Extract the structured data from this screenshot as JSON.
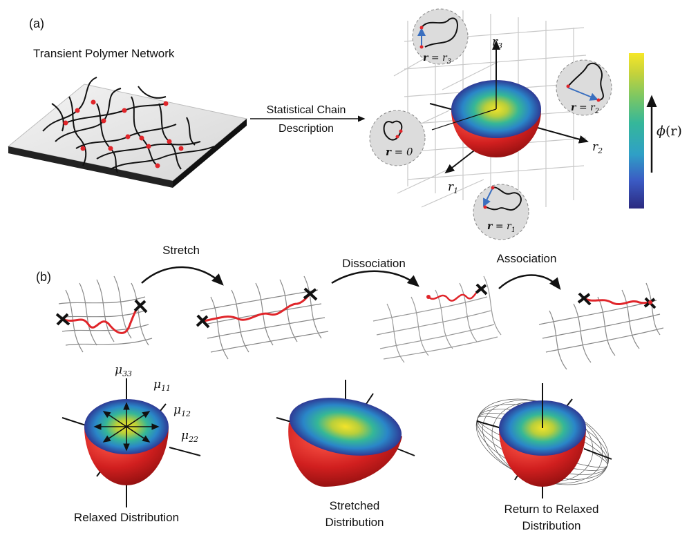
{
  "panel_a": {
    "label": "(a)",
    "network_title": "Transient Polymer Network",
    "arrow_label_line1": "Statistical Chain",
    "arrow_label_line2": "Description",
    "axes": {
      "r1_base": "r",
      "r1_sub": "1",
      "r2_base": "r",
      "r2_sub": "2",
      "r3_base": "r",
      "r3_sub": "3"
    },
    "callouts": {
      "r_zero": {
        "lhs": "r",
        "eq": " = 0"
      },
      "r_r3": {
        "lhs": "r",
        "eq": " = r",
        "sub": "3"
      },
      "r_r2": {
        "lhs": "r",
        "eq": " = r",
        "sub": "2"
      },
      "r_r1": {
        "lhs": "r",
        "eq": " = r",
        "sub": "1"
      }
    },
    "colorbar": {
      "label_fn": "ϕ",
      "label_arg": "(r)",
      "colors": [
        "#2b2a80",
        "#3b5bc4",
        "#2fa0c6",
        "#35b79a",
        "#7cc763",
        "#c5d23b",
        "#f6e728"
      ]
    }
  },
  "panel_b": {
    "label": "(b)",
    "steps": [
      "Stretch",
      "Dissociation",
      "Association"
    ],
    "mu": {
      "m33_base": "μ",
      "m33_sub": "33",
      "m11_base": "μ",
      "m11_sub": "11",
      "m12_base": "μ",
      "m12_sub": "12",
      "m22_base": "μ",
      "m22_sub": "22"
    },
    "captions": {
      "relaxed": "Relaxed Distribution",
      "stretched_line1": "Stretched",
      "stretched_line2": "Distribution",
      "return_line1": "Return to Relaxed",
      "return_line2": "Distribution"
    }
  },
  "colors": {
    "chain": "#e0252a",
    "crosslink": "#e0252a",
    "sphere_shell": "#c41a1a",
    "arrow_blue": "#3a6fbf",
    "callout_fill": "#dcdcdc"
  }
}
